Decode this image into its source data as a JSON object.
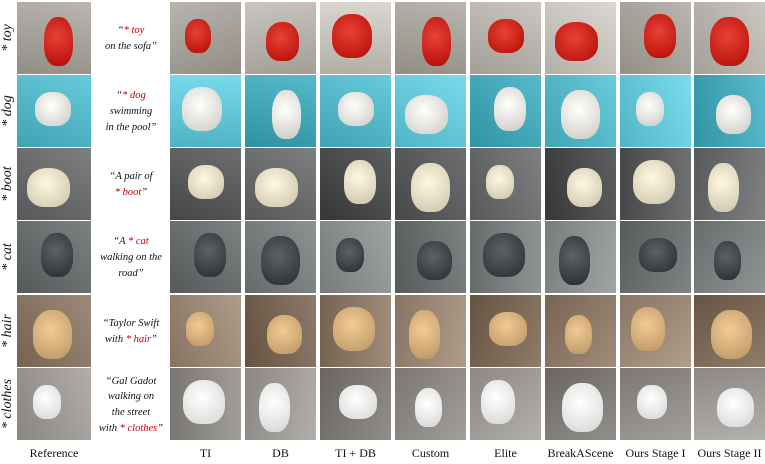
{
  "rows": [
    {
      "label": "* toy",
      "prompt": [
        [
          "“",
          "* toy",
          ""
        ],
        [
          "on the sofa”"
        ]
      ],
      "bg": "#b8b4ae",
      "fg": "#d0281f"
    },
    {
      "label": "* dog",
      "prompt": [
        [
          "“",
          "* dog",
          ""
        ],
        [
          "swimming"
        ],
        [
          "in the pool”"
        ]
      ],
      "bg": "#55b9c9",
      "fg": "#e8e6e2"
    },
    {
      "label": "* boot",
      "prompt": [
        [
          "“A pair of"
        ],
        [
          "",
          "* boot",
          "”"
        ]
      ],
      "bg": "#5b5c5e",
      "fg": "#e7dfc6"
    },
    {
      "label": "* cat",
      "prompt": [
        [
          "“A ",
          "* cat",
          ""
        ],
        [
          "walking on the"
        ],
        [
          "road”"
        ]
      ],
      "bg": "#7a7f80",
      "fg": "#45494d"
    },
    {
      "label": "* hair",
      "prompt": [
        [
          "“Taylor Swift"
        ],
        [
          "with ",
          "* hair",
          "”"
        ]
      ],
      "bg": "#8a7766",
      "fg": "#d7b27d"
    },
    {
      "label": "* clothes",
      "prompt": [
        [
          "“Gal Gadot"
        ],
        [
          "walking on"
        ],
        [
          "the street"
        ],
        [
          "with ",
          "* clothes",
          "”"
        ]
      ],
      "bg": "#8d8a85",
      "fg": "#f2f2f2"
    }
  ],
  "columns": {
    "reference": "Reference",
    "methods": [
      "TI",
      "DB",
      "TI + DB",
      "Custom",
      "Elite",
      "BreakAScene",
      "Ours Stage I",
      "Ours Stage II"
    ]
  }
}
